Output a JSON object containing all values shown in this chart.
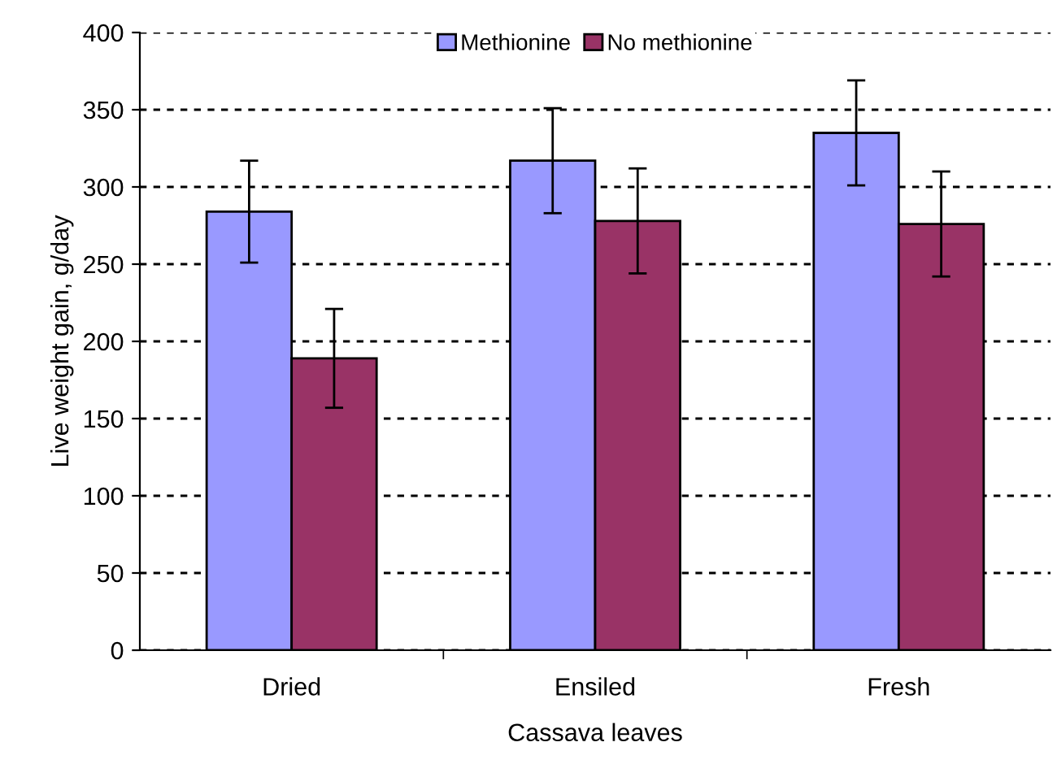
{
  "chart_data": {
    "type": "bar",
    "xlabel": "Cassava leaves",
    "ylabel": "Live weight gain, g/day",
    "categories": [
      "Dried",
      "Ensiled",
      "Fresh"
    ],
    "series": [
      {
        "name": "Methionine",
        "color": "#9999ff",
        "values": [
          284,
          317,
          335
        ],
        "errors": [
          33,
          34,
          34
        ]
      },
      {
        "name": "No methionine",
        "color": "#993366",
        "values": [
          189,
          278,
          276
        ],
        "errors": [
          32,
          34,
          34
        ]
      }
    ],
    "ylim": [
      0,
      400
    ],
    "yticks": [
      0,
      50,
      100,
      150,
      200,
      250,
      300,
      350,
      400
    ],
    "grid": "y",
    "legend": "top"
  }
}
